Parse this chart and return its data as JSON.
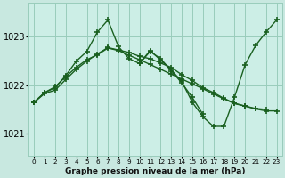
{
  "bg_color": "#c8e8e0",
  "plot_bg_color": "#cceee6",
  "grid_color": "#99ccbb",
  "line_color": "#1a6020",
  "title": "Graphe pression niveau de la mer (hPa)",
  "xlim": [
    -0.5,
    23.5
  ],
  "ylim": [
    1020.55,
    1023.7
  ],
  "yticks": [
    1021,
    1022,
    1023
  ],
  "series": [
    {
      "x": [
        0,
        1,
        2,
        3,
        4,
        5,
        6,
        7,
        8,
        9,
        10,
        11,
        12,
        13,
        14,
        15,
        16
      ],
      "y": [
        1021.65,
        1021.85,
        1021.95,
        1022.2,
        1022.5,
        1022.7,
        1023.1,
        1023.35,
        1022.8,
        1022.55,
        1022.45,
        1022.7,
        1022.55,
        1022.3,
        1022.05,
        1021.75,
        1021.4
      ]
    },
    {
      "x": [
        10,
        11,
        12,
        13,
        14,
        15,
        16,
        17,
        18,
        19,
        20,
        21,
        22,
        23
      ],
      "y": [
        1022.45,
        1022.72,
        1022.52,
        1022.32,
        1022.08,
        1021.65,
        1021.35,
        1021.15,
        1021.15,
        1021.75,
        1022.42,
        1022.82,
        1023.1,
        1023.35
      ]
    },
    {
      "x": [
        0,
        1,
        2,
        3,
        4,
        5,
        6,
        7,
        8,
        9,
        10,
        11,
        12,
        13,
        14,
        15,
        16,
        17,
        18,
        19,
        20,
        21,
        22
      ],
      "y": [
        1021.65,
        1021.83,
        1021.9,
        1022.12,
        1022.33,
        1022.5,
        1022.65,
        1022.78,
        1022.73,
        1022.68,
        1022.6,
        1022.55,
        1022.46,
        1022.37,
        1022.22,
        1022.1,
        1021.95,
        1021.85,
        1021.73,
        1021.63,
        1021.57,
        1021.52,
        1021.5
      ]
    },
    {
      "x": [
        0,
        1,
        2,
        3,
        4,
        5,
        6,
        7,
        8,
        9,
        10,
        11,
        12,
        13,
        14,
        15,
        16,
        17,
        18,
        19,
        20,
        21,
        22,
        23
      ],
      "y": [
        1021.65,
        1021.85,
        1021.97,
        1022.18,
        1022.37,
        1022.53,
        1022.63,
        1022.77,
        1022.72,
        1022.62,
        1022.53,
        1022.43,
        1022.33,
        1022.23,
        1022.13,
        1022.03,
        1021.93,
        1021.82,
        1021.72,
        1021.62,
        1021.57,
        1021.51,
        1021.47,
        1021.47
      ]
    }
  ]
}
